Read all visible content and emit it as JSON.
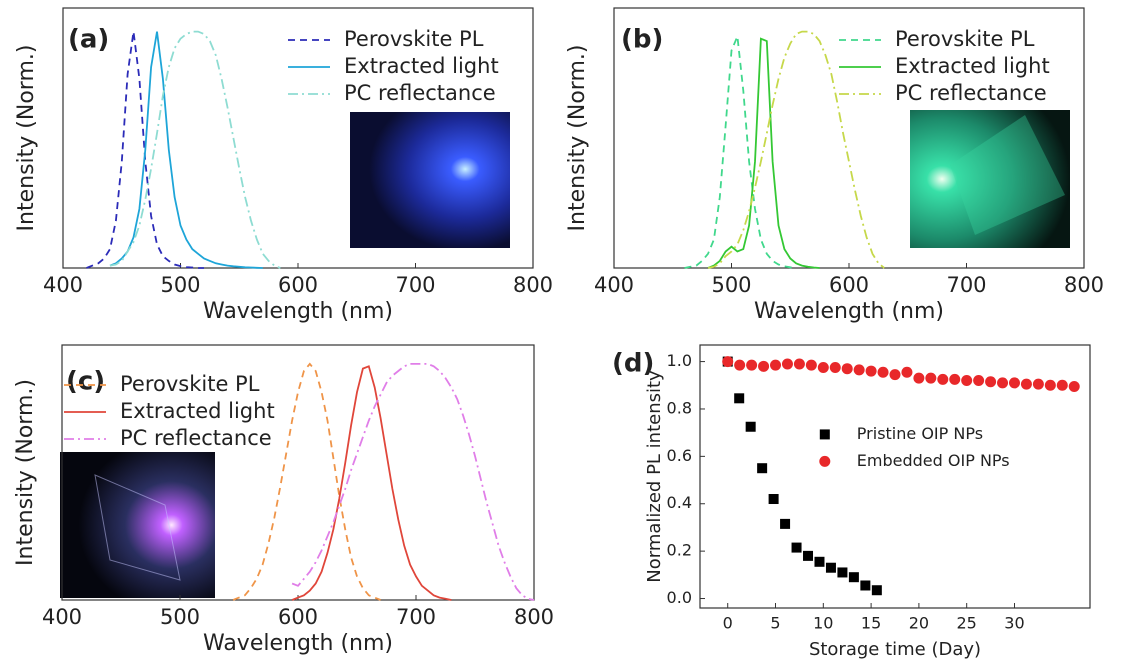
{
  "chart_data": [
    {
      "type": "line",
      "label": "(a)",
      "xlabel": "Wavelength (nm)",
      "ylabel": "Intensity (Norm.)",
      "legend": "upper right",
      "xlim": [
        400,
        800
      ],
      "xticks": [
        400,
        500,
        600,
        700,
        800
      ],
      "ylim": [
        0,
        1.1
      ],
      "x": [
        420,
        425,
        430,
        435,
        440,
        445,
        450,
        455,
        460,
        465,
        470,
        475,
        480,
        485,
        490,
        495,
        500,
        505,
        510,
        515,
        520,
        525,
        530,
        535,
        540,
        545,
        550,
        555,
        560,
        565,
        570,
        575,
        580,
        585,
        590,
        595,
        600
      ],
      "series": [
        {
          "name": "Perovskite PL",
          "color": "#2b2bb8",
          "dash": "dashed",
          "values": [
            0,
            0.01,
            0.02,
            0.04,
            0.08,
            0.2,
            0.45,
            0.82,
            1,
            0.8,
            0.45,
            0.22,
            0.1,
            0.05,
            0.03,
            0.015,
            0.008,
            0.004,
            0.002,
            0,
            0,
            null,
            null,
            null,
            null,
            null,
            null,
            null,
            null,
            null,
            null,
            null,
            null,
            null,
            null,
            null,
            null
          ]
        },
        {
          "name": "Extracted light",
          "color": "#1ea5d8",
          "dash": "solid",
          "values": [
            null,
            null,
            null,
            null,
            0.01,
            0.02,
            0.04,
            0.07,
            0.13,
            0.25,
            0.5,
            0.85,
            1,
            0.8,
            0.5,
            0.3,
            0.18,
            0.12,
            0.08,
            0.06,
            0.04,
            0.03,
            0.02,
            0.015,
            0.01,
            0.007,
            0.005,
            0.003,
            0.002,
            0.001,
            0,
            null,
            null,
            null,
            null,
            null,
            null
          ]
        },
        {
          "name": "PC reflectance",
          "color": "#8edcd2",
          "dash": "dashdot",
          "values": [
            null,
            null,
            null,
            null,
            0.01,
            0.015,
            0.03,
            0.07,
            0.11,
            0.18,
            0.29,
            0.42,
            0.57,
            0.73,
            0.85,
            0.93,
            0.97,
            0.99,
            1,
            1,
            0.99,
            0.96,
            0.9,
            0.8,
            0.68,
            0.55,
            0.42,
            0.3,
            0.2,
            0.12,
            0.06,
            0.03,
            0.01,
            0,
            null,
            null,
            null
          ]
        }
      ]
    },
    {
      "type": "line",
      "label": "(b)",
      "xlabel": "Wavelength (nm)",
      "ylabel": "Intensity (Norm.)",
      "legend": "upper right",
      "xlim": [
        400,
        800
      ],
      "xticks": [
        400,
        500,
        600,
        700,
        800
      ],
      "ylim": [
        0,
        1.1
      ],
      "x": [
        460,
        465,
        470,
        475,
        480,
        485,
        490,
        495,
        500,
        505,
        510,
        515,
        520,
        525,
        530,
        535,
        540,
        545,
        550,
        555,
        560,
        565,
        570,
        575,
        580,
        585,
        590,
        595,
        600,
        605,
        610,
        615,
        620,
        625,
        630,
        635,
        640
      ],
      "series": [
        {
          "name": "Perovskite PL",
          "color": "#40d88c",
          "dash": "dashed",
          "values": [
            0,
            0.005,
            0.01,
            0.03,
            0.06,
            0.12,
            0.3,
            0.6,
            0.92,
            0.98,
            0.75,
            0.45,
            0.25,
            0.12,
            0.06,
            0.03,
            0.015,
            0.007,
            0.003,
            0,
            null,
            null,
            null,
            null,
            null,
            null,
            null,
            null,
            null,
            null,
            null,
            null,
            null,
            null,
            null,
            null,
            null
          ]
        },
        {
          "name": "Extracted light",
          "color": "#34c834",
          "dash": "solid",
          "values": [
            null,
            null,
            null,
            null,
            0,
            0.01,
            0.03,
            0.07,
            0.09,
            0.07,
            0.08,
            0.18,
            0.45,
            0.97,
            0.96,
            0.45,
            0.18,
            0.08,
            0.04,
            0.02,
            0.01,
            0.005,
            0.002,
            0,
            null,
            null,
            null,
            null,
            null,
            null,
            null,
            null,
            null,
            null,
            null,
            null,
            null
          ]
        },
        {
          "name": "PC reflectance",
          "color": "#c6d84a",
          "dash": "dashdot",
          "values": [
            null,
            null,
            null,
            null,
            0,
            0.005,
            0.02,
            0.05,
            0.07,
            0.1,
            0.16,
            0.24,
            0.34,
            0.45,
            0.57,
            0.69,
            0.8,
            0.89,
            0.95,
            0.99,
            1,
            1,
            0.99,
            0.96,
            0.9,
            0.82,
            0.7,
            0.57,
            0.45,
            0.33,
            0.22,
            0.13,
            0.06,
            0.02,
            0,
            null,
            null
          ]
        }
      ]
    },
    {
      "type": "line",
      "label": "(c)",
      "xlabel": "Wavelength (nm)",
      "ylabel": "Intensity (Norm.)",
      "legend": "upper left",
      "xlim": [
        400,
        800
      ],
      "xticks": [
        400,
        500,
        600,
        700,
        800
      ],
      "ylim": [
        0,
        1.08
      ],
      "x": [
        545,
        550,
        555,
        560,
        565,
        570,
        575,
        580,
        585,
        590,
        595,
        600,
        605,
        610,
        615,
        620,
        625,
        630,
        635,
        640,
        645,
        650,
        655,
        660,
        665,
        670,
        675,
        680,
        685,
        690,
        695,
        700,
        705,
        710,
        715,
        720,
        725,
        730,
        735,
        740,
        745,
        750,
        755,
        760,
        765,
        770,
        775,
        780,
        785,
        790,
        795,
        800
      ],
      "series": [
        {
          "name": "Perovskite PL",
          "color": "#ef9448",
          "dash": "dashed",
          "values": [
            0,
            0.01,
            0.02,
            0.05,
            0.09,
            0.15,
            0.24,
            0.35,
            0.48,
            0.62,
            0.76,
            0.88,
            0.97,
            1,
            0.97,
            0.88,
            0.76,
            0.6,
            0.44,
            0.3,
            0.18,
            0.1,
            0.05,
            0.02,
            0.01,
            0,
            null,
            null,
            null,
            null,
            null,
            null,
            null,
            null,
            null,
            null,
            null,
            null,
            null,
            null,
            null,
            null,
            null,
            null,
            null,
            null,
            null,
            null,
            null,
            null,
            null,
            null
          ]
        },
        {
          "name": "Extracted light",
          "color": "#e0463a",
          "dash": "solid",
          "values": [
            null,
            null,
            null,
            null,
            null,
            null,
            null,
            null,
            null,
            null,
            0,
            0.01,
            0.02,
            0.04,
            0.07,
            0.12,
            0.2,
            0.3,
            0.43,
            0.58,
            0.74,
            0.88,
            0.98,
            0.99,
            0.9,
            0.77,
            0.62,
            0.47,
            0.34,
            0.23,
            0.15,
            0.1,
            0.06,
            0.04,
            0.02,
            0.01,
            0.005,
            0,
            null,
            null,
            null,
            null,
            null,
            null,
            null,
            null,
            null,
            null,
            null,
            null,
            null,
            null
          ]
        },
        {
          "name": "PC reflectance",
          "color": "#e07ee8",
          "dash": "dashdot",
          "values": [
            null,
            null,
            null,
            null,
            null,
            null,
            null,
            null,
            null,
            null,
            0.07,
            0.06,
            0.09,
            0.12,
            0.16,
            0.21,
            0.27,
            0.33,
            0.4,
            0.47,
            0.55,
            0.62,
            0.69,
            0.76,
            0.82,
            0.87,
            0.92,
            0.95,
            0.97,
            0.99,
            1,
            1,
            1,
            1,
            0.99,
            0.97,
            0.94,
            0.9,
            0.85,
            0.78,
            0.7,
            0.61,
            0.51,
            0.41,
            0.32,
            0.23,
            0.16,
            0.1,
            0.05,
            0.02,
            0.005,
            0
          ]
        }
      ]
    },
    {
      "type": "scatter",
      "label": "(d)",
      "xlabel": "Storage time (Day)",
      "ylabel": "Normalized PL intensity",
      "legend": "center right",
      "xlim": [
        -2.9,
        37.9
      ],
      "xticks": [
        0,
        5,
        10,
        15,
        20,
        25,
        30
      ],
      "ylim": [
        -0.04,
        1.07
      ],
      "yticks": [
        {
          "value": 0,
          "label": "0.0"
        },
        0.2,
        0.4,
        0.6,
        0.8,
        {
          "value": 1,
          "label": "1.0"
        }
      ],
      "series": [
        {
          "name": "Pristine OIP NPs",
          "color": "#000000",
          "marker": "square",
          "x": [
            0,
            1.2,
            2.4,
            3.6,
            4.8,
            6,
            7.2,
            8.4,
            9.6,
            10.8,
            12,
            13.2,
            14.4,
            15.6
          ],
          "values": [
            1.0,
            0.845,
            0.725,
            0.55,
            0.42,
            0.315,
            0.215,
            0.18,
            0.155,
            0.13,
            0.11,
            0.09,
            0.055,
            0.035
          ]
        },
        {
          "name": "Embedded OIP NPs",
          "color": "#e8282a",
          "marker": "circle",
          "x": [
            0,
            1.25,
            2.5,
            3.75,
            5,
            6.25,
            7.5,
            8.75,
            10,
            11.25,
            12.5,
            13.75,
            15,
            16.25,
            17.5,
            18.75,
            20,
            21.25,
            22.5,
            23.75,
            25,
            26.25,
            27.5,
            28.75,
            30,
            31.25,
            32.5,
            33.75,
            35,
            36.25
          ],
          "values": [
            1.0,
            0.985,
            0.985,
            0.98,
            0.985,
            0.99,
            0.99,
            0.985,
            0.975,
            0.975,
            0.97,
            0.965,
            0.96,
            0.955,
            0.945,
            0.955,
            0.93,
            0.93,
            0.925,
            0.925,
            0.92,
            0.92,
            0.915,
            0.91,
            0.91,
            0.905,
            0.905,
            0.9,
            0.9,
            0.895
          ]
        }
      ]
    }
  ]
}
